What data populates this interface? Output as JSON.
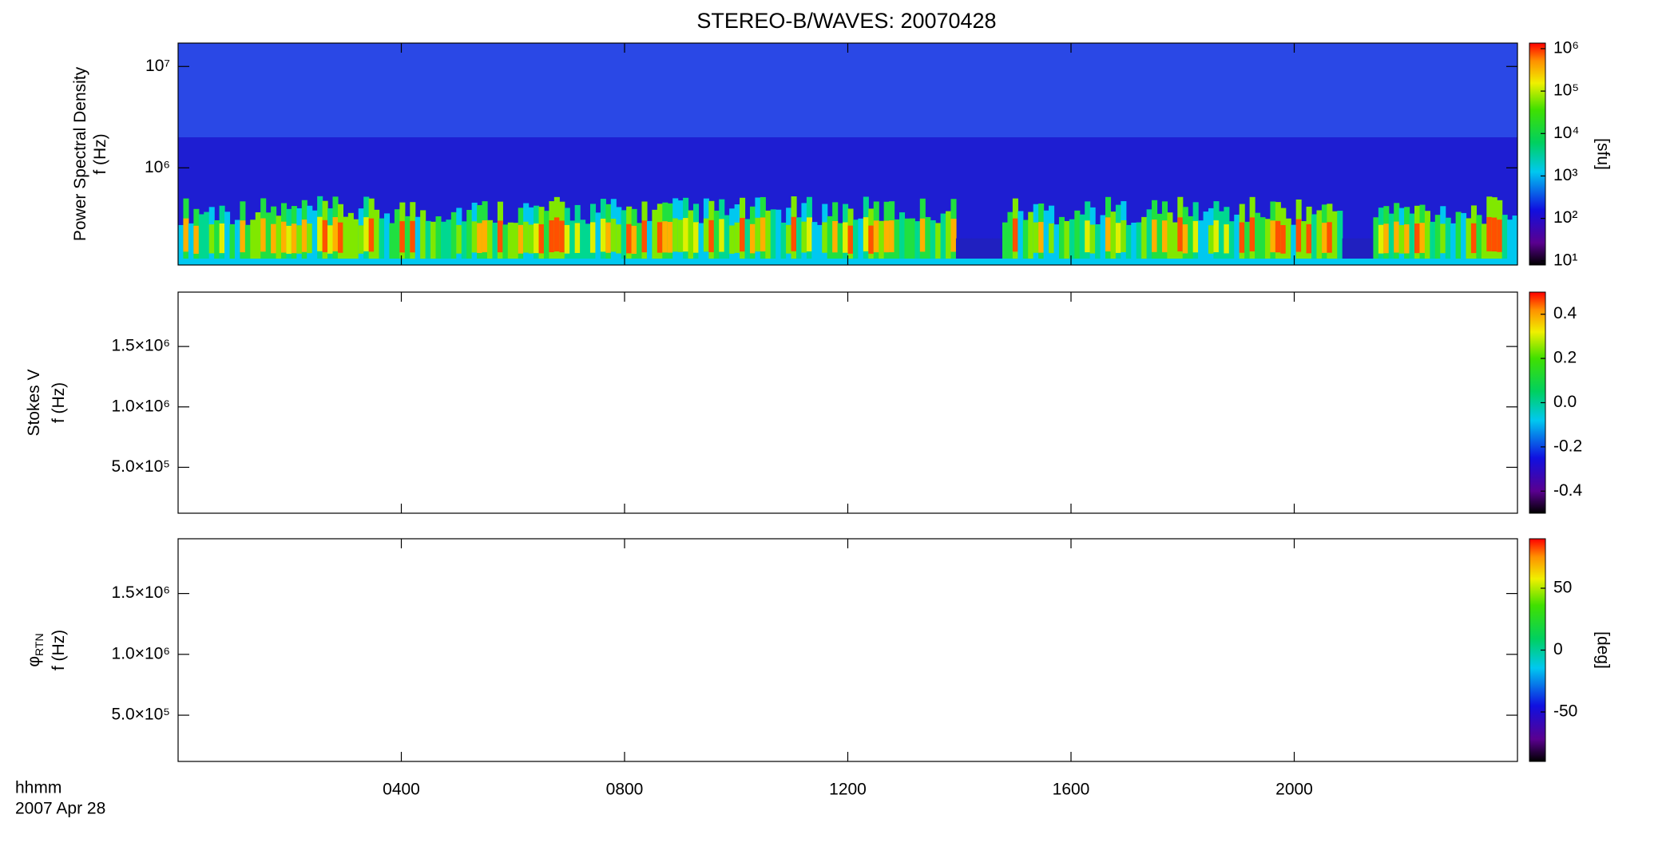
{
  "chart_data": [
    {
      "type": "heatmap",
      "title": "STEREO-B/WAVES: 20070428",
      "y_label": [
        "Power Spectral Density",
        "f (Hz)"
      ],
      "log_y": true,
      "ylim": [
        110000,
        17000000
      ],
      "yticks": [
        {
          "value": 1000000,
          "label": "10⁶"
        },
        {
          "value": 10000000,
          "label": "10⁷"
        }
      ],
      "colorbar": {
        "log": true,
        "lim": [
          8,
          1350000
        ],
        "label": "[sfu]",
        "ticks": [
          {
            "value": 10,
            "label": "10¹"
          },
          {
            "value": 100,
            "label": "10²"
          },
          {
            "value": 1000,
            "label": "10³"
          },
          {
            "value": 10000,
            "label": "10⁴"
          },
          {
            "value": 100000,
            "label": "10⁵"
          },
          {
            "value": 1000000,
            "label": "10⁶"
          }
        ]
      }
    },
    {
      "type": "heatmap",
      "y_label": [
        "Stokes V",
        "f (Hz)"
      ],
      "ylim": [
        120000,
        1950000
      ],
      "yticks": [
        {
          "value": 500000,
          "label": "5.0×10⁵"
        },
        {
          "value": 1000000,
          "label": "1.0×10⁶"
        },
        {
          "value": 1500000,
          "label": "1.5×10⁶"
        }
      ],
      "colorbar": {
        "lim": [
          -0.5,
          0.5
        ],
        "ticks": [
          -0.4,
          -0.2,
          {
            "value": 0,
            "label": "0.0"
          },
          0.2,
          0.4
        ]
      }
    },
    {
      "type": "heatmap",
      "y_label": [
        "φ",
        "f (Hz)"
      ],
      "y_label_subscript": "RTN",
      "ylim": [
        120000,
        1950000
      ],
      "yticks": [
        {
          "value": 500000,
          "label": "5.0×10⁵"
        },
        {
          "value": 1000000,
          "label": "1.0×10⁶"
        },
        {
          "value": 1500000,
          "label": "1.5×10⁶"
        }
      ],
      "colorbar": {
        "lim": [
          -90,
          90
        ],
        "label": "[deg]",
        "ticks": [
          -50,
          0,
          50
        ]
      },
      "x_label": [
        "hhmm",
        "2007 Apr 28"
      ],
      "xlim": [
        0,
        24
      ],
      "xticks": [
        {
          "value": 4,
          "label": "0400"
        },
        {
          "value": 8,
          "label": "0800"
        },
        {
          "value": 12,
          "label": "1200"
        },
        {
          "value": 16,
          "label": "1600"
        },
        {
          "value": 20,
          "label": "2000"
        }
      ]
    }
  ]
}
